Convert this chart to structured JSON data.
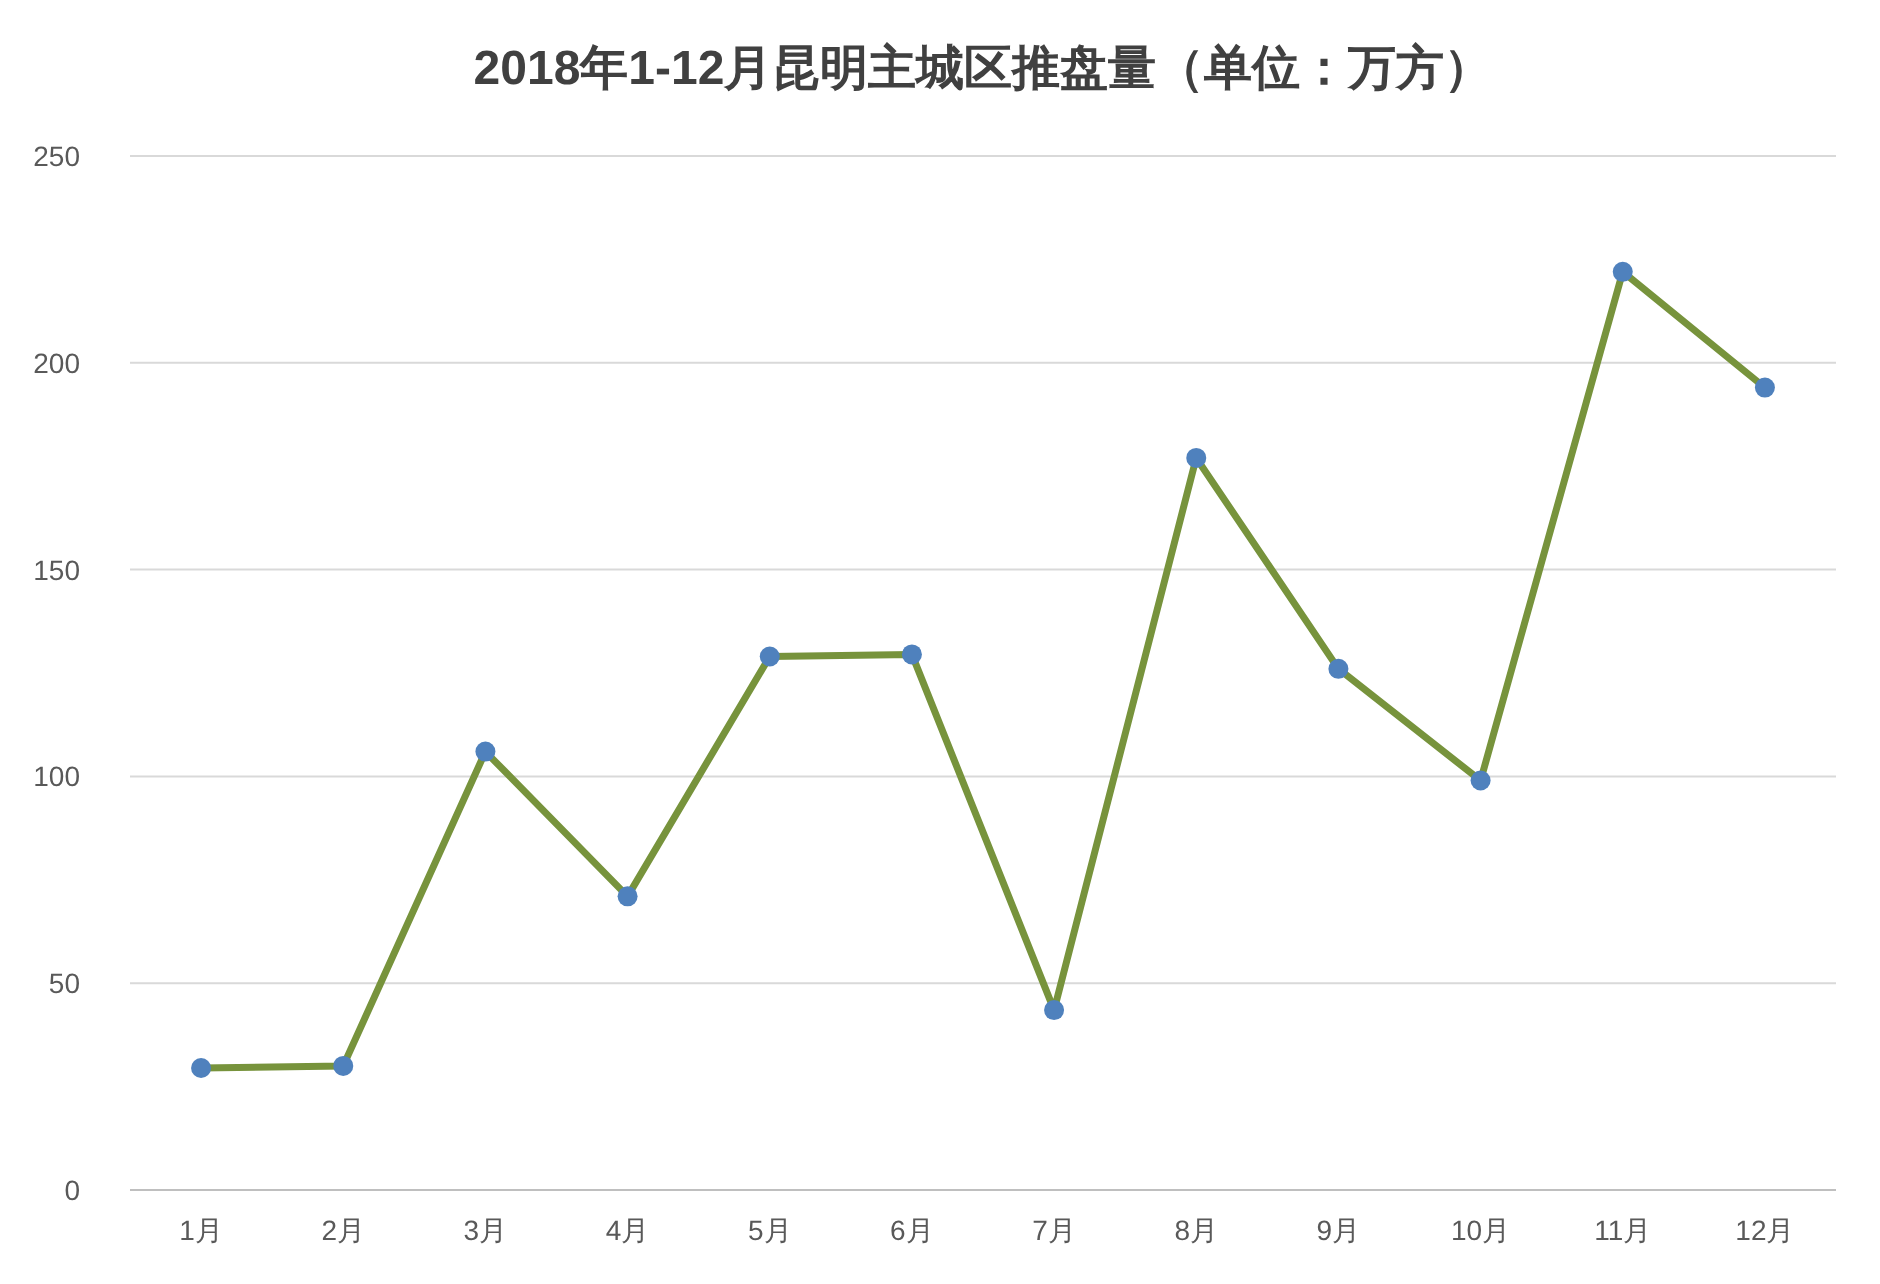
{
  "chart_data": {
    "type": "line",
    "title": "2018年1-12月昆明主城区推盘量（单位：万方）",
    "categories": [
      "1月",
      "2月",
      "3月",
      "4月",
      "5月",
      "6月",
      "7月",
      "8月",
      "9月",
      "10月",
      "11月",
      "12月"
    ],
    "series": [
      {
        "color": "#77933c",
        "values": [
          29.5,
          30,
          106,
          71,
          129,
          129.5,
          43.5,
          177,
          126,
          99,
          222,
          194
        ]
      }
    ],
    "ylim": [
      0,
      250
    ],
    "yticks": [
      0,
      50,
      100,
      150,
      200,
      250
    ],
    "grid": "y",
    "marker": "circle",
    "line_style": "solid"
  }
}
